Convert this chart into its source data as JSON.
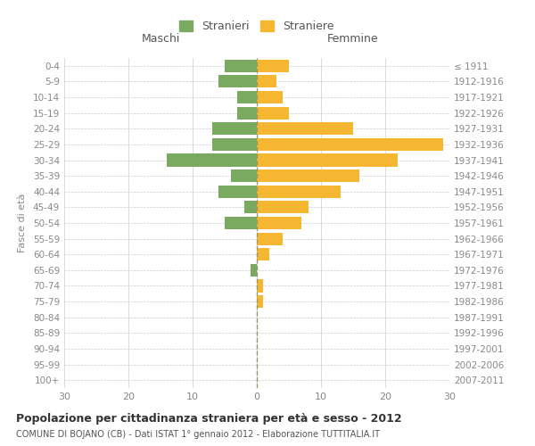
{
  "age_groups": [
    "100+",
    "95-99",
    "90-94",
    "85-89",
    "80-84",
    "75-79",
    "70-74",
    "65-69",
    "60-64",
    "55-59",
    "50-54",
    "45-49",
    "40-44",
    "35-39",
    "30-34",
    "25-29",
    "20-24",
    "15-19",
    "10-14",
    "5-9",
    "0-4"
  ],
  "birth_years": [
    "≤ 1911",
    "1912-1916",
    "1917-1921",
    "1922-1926",
    "1927-1931",
    "1932-1936",
    "1937-1941",
    "1942-1946",
    "1947-1951",
    "1952-1956",
    "1957-1961",
    "1962-1966",
    "1967-1971",
    "1972-1976",
    "1977-1981",
    "1982-1986",
    "1987-1991",
    "1992-1996",
    "1997-2001",
    "2002-2006",
    "2007-2011"
  ],
  "maschi": [
    0,
    0,
    0,
    0,
    0,
    0,
    0,
    1,
    0,
    0,
    5,
    2,
    6,
    4,
    14,
    7,
    7,
    3,
    3,
    6,
    5
  ],
  "femmine": [
    0,
    0,
    0,
    0,
    0,
    1,
    1,
    0,
    2,
    4,
    7,
    8,
    13,
    16,
    22,
    29,
    15,
    5,
    4,
    3,
    5
  ],
  "maschi_color": "#7aaa60",
  "femmine_color": "#f5b731",
  "bg_color": "#ffffff",
  "grid_color": "#cccccc",
  "title": "Popolazione per cittadinanza straniera per età e sesso - 2012",
  "subtitle": "COMUNE DI BOJANO (CB) - Dati ISTAT 1° gennaio 2012 - Elaborazione TUTTITALIA.IT",
  "ylabel_left": "Fasce di età",
  "xlabel_maschi": "Maschi",
  "xlabel_femmine": "Femmine",
  "legend_maschi": "Stranieri",
  "legend_femmine": "Straniere",
  "xlim": 30,
  "bar_height": 0.8,
  "center_line_color": "#999966",
  "label_color": "#888888"
}
